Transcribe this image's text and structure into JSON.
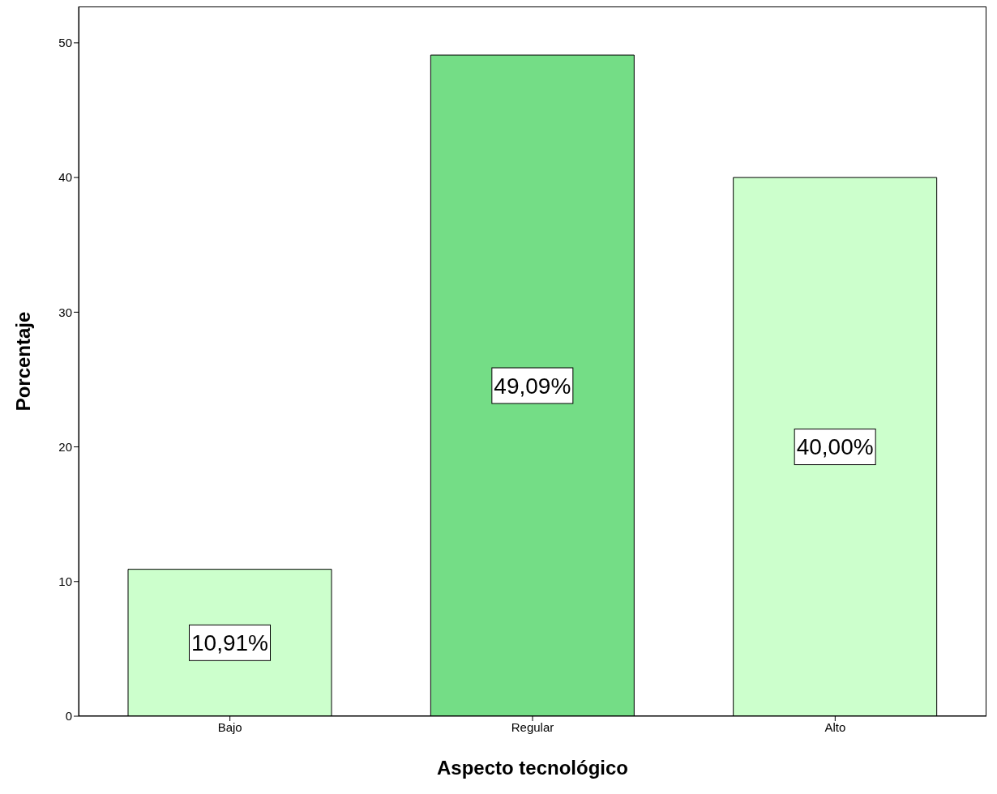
{
  "chart_data": {
    "type": "bar",
    "xlabel": "Aspecto tecnológico",
    "ylabel": "Porcentaje",
    "categories": [
      "Bajo",
      "Regular",
      "Alto"
    ],
    "values": [
      10.91,
      49.09,
      40.0
    ],
    "colors": [
      "#ccffcc",
      "#74dd86",
      "#ccffcc"
    ],
    "value_labels": [
      "10,91%",
      "49,09%",
      "40,00%"
    ],
    "ylim": [
      0,
      52.7
    ],
    "yticks": [
      0,
      10,
      20,
      30,
      40,
      50
    ],
    "grid": false,
    "legend": false
  }
}
